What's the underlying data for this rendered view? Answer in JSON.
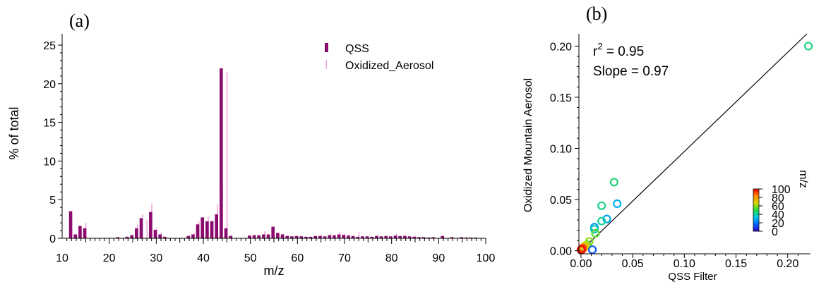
{
  "chart_data": [
    {
      "type": "bar",
      "panel_label": "(a)",
      "xlabel": "m/z",
      "ylabel": "% of total",
      "xlim": [
        10,
        100
      ],
      "ylim": [
        0,
        25
      ],
      "x_ticks": [
        "10",
        "20",
        "30",
        "40",
        "50",
        "60",
        "70",
        "80",
        "90",
        "100"
      ],
      "y_ticks": [
        "0",
        "5",
        "10",
        "15",
        "20",
        "25"
      ],
      "legend_position": "top-right",
      "series": [
        {
          "name": "QSS",
          "color": "#8b0a6e",
          "style": "wide",
          "points": [
            [
              12,
              3.5
            ],
            [
              13,
              0.5
            ],
            [
              14,
              1.6
            ],
            [
              15,
              1.3
            ],
            [
              22,
              0.15
            ],
            [
              24,
              0.2
            ],
            [
              25,
              0.4
            ],
            [
              26,
              1.3
            ],
            [
              27,
              2.6
            ],
            [
              29,
              3.4
            ],
            [
              30,
              1.1
            ],
            [
              31,
              0.5
            ],
            [
              32,
              0.2
            ],
            [
              37,
              0.3
            ],
            [
              38,
              0.5
            ],
            [
              39,
              1.8
            ],
            [
              40,
              2.7
            ],
            [
              41,
              2.2
            ],
            [
              42,
              2.2
            ],
            [
              43,
              3.1
            ],
            [
              44,
              22.0
            ],
            [
              45,
              1.3
            ],
            [
              46,
              0.3
            ],
            [
              50,
              0.35
            ],
            [
              51,
              0.4
            ],
            [
              52,
              0.4
            ],
            [
              53,
              0.5
            ],
            [
              54,
              0.5
            ],
            [
              55,
              1.5
            ],
            [
              56,
              0.7
            ],
            [
              57,
              0.5
            ],
            [
              58,
              0.3
            ],
            [
              59,
              0.25
            ],
            [
              60,
              0.3
            ],
            [
              61,
              0.25
            ],
            [
              62,
              0.2
            ],
            [
              63,
              0.2
            ],
            [
              64,
              0.3
            ],
            [
              65,
              0.3
            ],
            [
              66,
              0.25
            ],
            [
              67,
              0.4
            ],
            [
              68,
              0.4
            ],
            [
              69,
              0.5
            ],
            [
              70,
              0.45
            ],
            [
              71,
              0.35
            ],
            [
              72,
              0.3
            ],
            [
              73,
              0.2
            ],
            [
              74,
              0.25
            ],
            [
              75,
              0.25
            ],
            [
              76,
              0.2
            ],
            [
              77,
              0.3
            ],
            [
              78,
              0.25
            ],
            [
              79,
              0.3
            ],
            [
              80,
              0.25
            ],
            [
              81,
              0.35
            ],
            [
              82,
              0.3
            ],
            [
              83,
              0.3
            ],
            [
              84,
              0.25
            ],
            [
              85,
              0.2
            ],
            [
              86,
              0.15
            ],
            [
              87,
              0.15
            ],
            [
              88,
              0.1
            ],
            [
              89,
              0.15
            ],
            [
              91,
              0.3
            ],
            [
              93,
              0.15
            ],
            [
              95,
              0.15
            ],
            [
              96,
              0.1
            ],
            [
              97,
              0.1
            ],
            [
              98,
              0.1
            ]
          ]
        },
        {
          "name": "Oxidized_Aerosol",
          "color": "#f0a8e0",
          "style": "thin",
          "points": [
            [
              12,
              1.3
            ],
            [
              13,
              0.4
            ],
            [
              14,
              0.9
            ],
            [
              15,
              2.0
            ],
            [
              22,
              0.1
            ],
            [
              24,
              0.2
            ],
            [
              25,
              0.5
            ],
            [
              26,
              1.8
            ],
            [
              27,
              3.1
            ],
            [
              28,
              2.4
            ],
            [
              29,
              4.5
            ],
            [
              30,
              1.3
            ],
            [
              31,
              0.7
            ],
            [
              32,
              0.2
            ],
            [
              37,
              0.4
            ],
            [
              38,
              0.7
            ],
            [
              39,
              2.2
            ],
            [
              40,
              2.0
            ],
            [
              41,
              2.8
            ],
            [
              42,
              2.3
            ],
            [
              43,
              4.4
            ],
            [
              44,
              6.8
            ],
            [
              45,
              21.5
            ],
            [
              46,
              0.5
            ],
            [
              50,
              0.4
            ],
            [
              51,
              0.5
            ],
            [
              53,
              0.9
            ],
            [
              54,
              0.5
            ],
            [
              55,
              1.0
            ],
            [
              56,
              0.5
            ],
            [
              57,
              0.6
            ],
            [
              58,
              0.4
            ],
            [
              59,
              0.3
            ],
            [
              61,
              0.3
            ],
            [
              65,
              0.5
            ],
            [
              67,
              0.6
            ],
            [
              69,
              0.8
            ],
            [
              70,
              0.6
            ],
            [
              71,
              0.5
            ],
            [
              73,
              0.8
            ],
            [
              77,
              0.4
            ],
            [
              79,
              0.3
            ],
            [
              81,
              0.6
            ],
            [
              83,
              0.4
            ],
            [
              85,
              0.3
            ],
            [
              91,
              0.3
            ],
            [
              95,
              0.2
            ]
          ]
        }
      ]
    },
    {
      "type": "scatter",
      "panel_label": "(b)",
      "xlabel": "QSS Filter",
      "ylabel": "Oxidized Mountain Aerosol",
      "xlim": [
        -0.002,
        0.222
      ],
      "ylim": [
        -0.003,
        0.212
      ],
      "x_ticks": [
        "0.00",
        "0.05",
        "0.10",
        "0.15",
        "0.20"
      ],
      "y_ticks": [
        "0.00",
        "0.05",
        "0.10",
        "0.15",
        "0.20"
      ],
      "annotation": {
        "r_label": "r",
        "r_exponent": "2",
        "r_value": " = 0.95",
        "slope_text": "Slope = 0.97"
      },
      "fit_line": {
        "intercept": 0.0,
        "slope": 0.97
      },
      "colorbar": {
        "label": "m/z",
        "range": [
          0,
          100
        ],
        "ticks": [
          "0",
          "20",
          "40",
          "60",
          "80",
          "100"
        ],
        "colors": [
          "#3300cc",
          "#0066ff",
          "#00c8e6",
          "#22dd44",
          "#d8d800",
          "#ff8800",
          "#ee0000"
        ]
      },
      "points": [
        {
          "x": 0.22,
          "y": 0.2,
          "mz": 44
        },
        {
          "x": 0.032,
          "y": 0.067,
          "mz": 45
        },
        {
          "x": 0.035,
          "y": 0.046,
          "mz": 29
        },
        {
          "x": 0.02,
          "y": 0.044,
          "mz": 43
        },
        {
          "x": 0.025,
          "y": 0.031,
          "mz": 27
        },
        {
          "x": 0.02,
          "y": 0.029,
          "mz": 41
        },
        {
          "x": 0.013,
          "y": 0.023,
          "mz": 26
        },
        {
          "x": 0.013,
          "y": 0.021,
          "mz": 39
        },
        {
          "x": 0.014,
          "y": 0.017,
          "mz": 55
        },
        {
          "x": 0.008,
          "y": 0.009,
          "mz": 60
        },
        {
          "x": 0.006,
          "y": 0.006,
          "mz": 57
        },
        {
          "x": 0.011,
          "y": 0.001,
          "mz": 15
        },
        {
          "x": 0.004,
          "y": 0.005,
          "mz": 67
        },
        {
          "x": 0.003,
          "y": 0.003,
          "mz": 70
        },
        {
          "x": 0.002,
          "y": 0.002,
          "mz": 80
        },
        {
          "x": 0.002,
          "y": 0.003,
          "mz": 85
        },
        {
          "x": 0.001,
          "y": 0.001,
          "mz": 90
        },
        {
          "x": 0.001,
          "y": 0.002,
          "mz": 95
        },
        {
          "x": 0.0,
          "y": 0.001,
          "mz": 98
        }
      ]
    }
  ]
}
